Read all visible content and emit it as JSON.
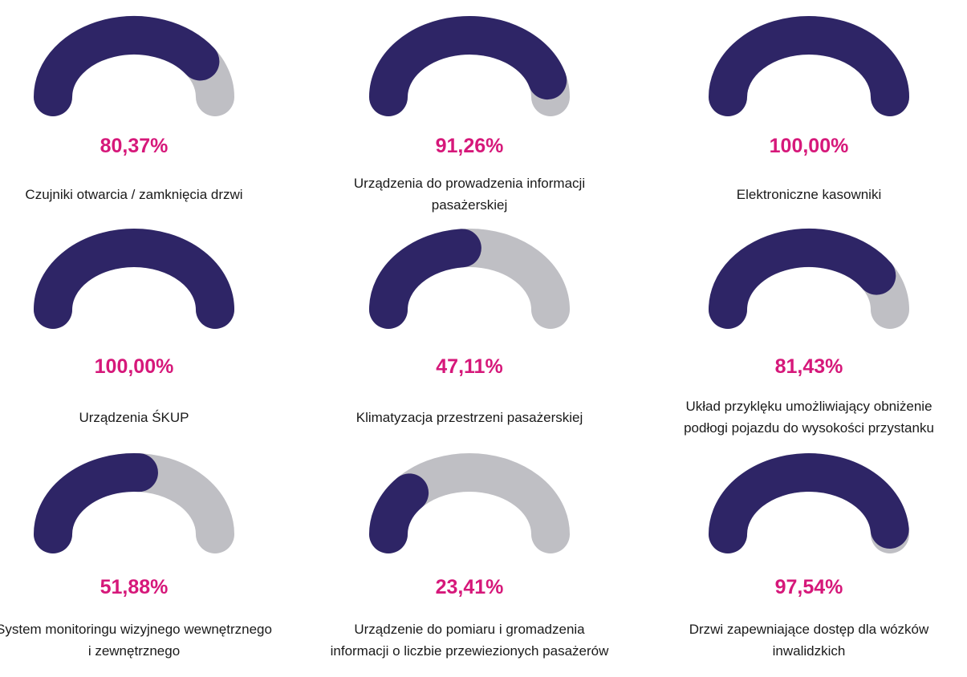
{
  "chart_data": [
    {
      "type": "gauge",
      "values": [
        80.37
      ],
      "value_labels": [
        "80,37%"
      ],
      "label": "Czujniki otwarcia / zamknięcia drzwi",
      "ylim": [
        0,
        100
      ],
      "color": "#2e2566",
      "track_color": "#bfbfc4"
    },
    {
      "type": "gauge",
      "values": [
        91.26
      ],
      "value_labels": [
        "91,26%"
      ],
      "label": "Urządzenia do prowadzenia informacji pasażerskiej",
      "ylim": [
        0,
        100
      ],
      "color": "#2e2566",
      "track_color": "#bfbfc4"
    },
    {
      "type": "gauge",
      "values": [
        100
      ],
      "value_labels": [
        "100,00%"
      ],
      "label": "Elektroniczne kasowniki",
      "ylim": [
        0,
        100
      ],
      "color": "#2e2566",
      "track_color": "#bfbfc4"
    },
    {
      "type": "gauge",
      "values": [
        100
      ],
      "value_labels": [
        "100,00%"
      ],
      "label": "Urządzenia ŚKUP",
      "ylim": [
        0,
        100
      ],
      "color": "#2e2566",
      "track_color": "#bfbfc4"
    },
    {
      "type": "gauge",
      "values": [
        47.11
      ],
      "value_labels": [
        "47,11%"
      ],
      "label": "Klimatyzacja przestrzeni pasażerskiej",
      "ylim": [
        0,
        100
      ],
      "color": "#2e2566",
      "track_color": "#bfbfc4"
    },
    {
      "type": "gauge",
      "values": [
        81.43
      ],
      "value_labels": [
        "81,43%"
      ],
      "label": "Układ przyklęku umożliwiający obniżenie podłogi pojazdu do wysokości przystanku",
      "ylim": [
        0,
        100
      ],
      "color": "#2e2566",
      "track_color": "#bfbfc4"
    },
    {
      "type": "gauge",
      "values": [
        51.88
      ],
      "value_labels": [
        "51,88%"
      ],
      "label": "System monitoringu wizyjnego wewnętrznego i zewnętrznego",
      "ylim": [
        0,
        100
      ],
      "color": "#2e2566",
      "track_color": "#bfbfc4"
    },
    {
      "type": "gauge",
      "values": [
        23.41
      ],
      "value_labels": [
        "23,41%"
      ],
      "label": "Urządzenie do pomiaru i gromadzenia informacji o liczbie przewiezionych pasażerów",
      "ylim": [
        0,
        100
      ],
      "color": "#2e2566",
      "track_color": "#bfbfc4"
    },
    {
      "type": "gauge",
      "values": [
        97.54
      ],
      "value_labels": [
        "97,54%"
      ],
      "label": "Drzwi zapewniające dostęp dla wózków inwalidzkich",
      "ylim": [
        0,
        100
      ],
      "color": "#2e2566",
      "track_color": "#bfbfc4"
    }
  ]
}
